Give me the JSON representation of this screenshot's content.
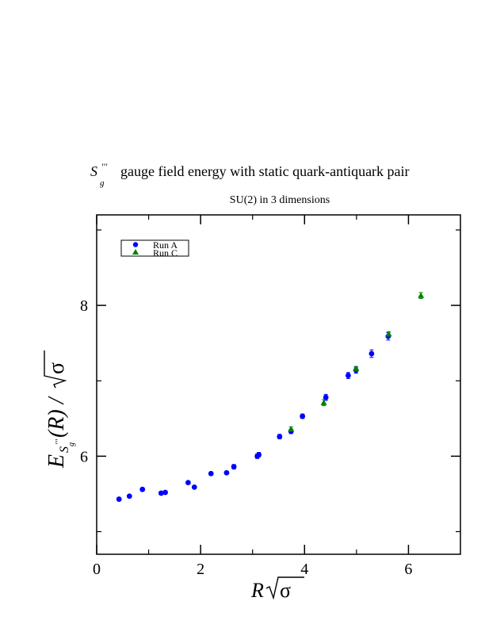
{
  "chart_data": {
    "type": "scatter",
    "title": {
      "symbol": "S",
      "symbol_sup": "'''",
      "symbol_sub": "g",
      "text": "gauge field energy with static quark-antiquark pair"
    },
    "subtitle": "SU(2) in 3 dimensions",
    "xlabel": {
      "var": "R",
      "sqrt_arg": "σ"
    },
    "ylabel": {
      "var": "E",
      "sub": "S",
      "sub_sup": "'''",
      "sub_sub": "g",
      "paren": "(R) /",
      "sqrt_arg": "σ"
    },
    "xlim": [
      0,
      7
    ],
    "ylim": [
      4.7,
      9.2
    ],
    "x_ticks": [
      0,
      2,
      4,
      6
    ],
    "y_ticks": [
      6,
      8
    ],
    "x_minor_ticks": [
      1,
      3,
      5,
      7
    ],
    "y_minor_ticks": [
      5,
      7,
      9
    ],
    "grid": false,
    "legend_position": "top-left",
    "series": [
      {
        "name": "Run A",
        "marker": "circle",
        "color": "#0000ff",
        "points": [
          {
            "x": 0.43,
            "y": 5.43,
            "err": 0.02
          },
          {
            "x": 0.63,
            "y": 5.47,
            "err": 0.02
          },
          {
            "x": 0.88,
            "y": 5.56,
            "err": 0.02
          },
          {
            "x": 1.24,
            "y": 5.51,
            "err": 0.02
          },
          {
            "x": 1.32,
            "y": 5.52,
            "err": 0.02
          },
          {
            "x": 1.76,
            "y": 5.65,
            "err": 0.02
          },
          {
            "x": 1.88,
            "y": 5.59,
            "err": 0.02
          },
          {
            "x": 2.2,
            "y": 5.77,
            "err": 0.02
          },
          {
            "x": 2.5,
            "y": 5.78,
            "err": 0.02
          },
          {
            "x": 2.64,
            "y": 5.86,
            "err": 0.03
          },
          {
            "x": 3.09,
            "y": 6.0,
            "err": 0.03
          },
          {
            "x": 3.12,
            "y": 6.02,
            "err": 0.03
          },
          {
            "x": 3.52,
            "y": 6.26,
            "err": 0.03
          },
          {
            "x": 3.74,
            "y": 6.33,
            "err": 0.03
          },
          {
            "x": 3.96,
            "y": 6.53,
            "err": 0.03
          },
          {
            "x": 4.41,
            "y": 6.78,
            "err": 0.04
          },
          {
            "x": 4.84,
            "y": 7.07,
            "err": 0.04
          },
          {
            "x": 4.99,
            "y": 7.14,
            "err": 0.04
          },
          {
            "x": 5.29,
            "y": 7.36,
            "err": 0.05
          },
          {
            "x": 5.61,
            "y": 7.59,
            "err": 0.05
          }
        ]
      },
      {
        "name": "Run C",
        "marker": "triangle",
        "color": "#008000",
        "points": [
          {
            "x": 3.74,
            "y": 6.36,
            "err": 0.03
          },
          {
            "x": 4.37,
            "y": 6.71,
            "err": 0.04
          },
          {
            "x": 4.99,
            "y": 7.16,
            "err": 0.03
          },
          {
            "x": 5.62,
            "y": 7.62,
            "err": 0.03
          },
          {
            "x": 6.24,
            "y": 8.13,
            "err": 0.04
          }
        ]
      }
    ]
  }
}
